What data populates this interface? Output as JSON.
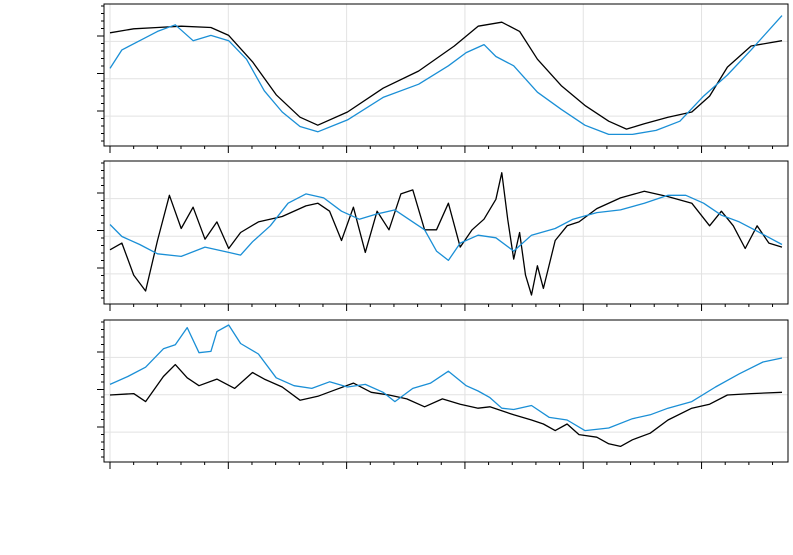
{
  "chart_data": [
    {
      "type": "line",
      "title": "",
      "xlabel": "",
      "ylabel": "",
      "xlim": [
        0,
        566
      ],
      "ylim": [
        0,
        1
      ],
      "grid": true,
      "series": [
        {
          "color": "#000000",
          "points": [
            [
              0,
              0.82
            ],
            [
              20,
              0.85
            ],
            [
              40,
              0.86
            ],
            [
              60,
              0.87
            ],
            [
              85,
              0.86
            ],
            [
              100,
              0.8
            ],
            [
              120,
              0.6
            ],
            [
              140,
              0.35
            ],
            [
              160,
              0.18
            ],
            [
              175,
              0.12
            ],
            [
              200,
              0.22
            ],
            [
              230,
              0.4
            ],
            [
              260,
              0.53
            ],
            [
              290,
              0.72
            ],
            [
              310,
              0.87
            ],
            [
              330,
              0.9
            ],
            [
              345,
              0.83
            ],
            [
              360,
              0.62
            ],
            [
              380,
              0.42
            ],
            [
              400,
              0.27
            ],
            [
              420,
              0.15
            ],
            [
              435,
              0.09
            ],
            [
              450,
              0.13
            ],
            [
              470,
              0.18
            ],
            [
              490,
              0.22
            ],
            [
              505,
              0.34
            ],
            [
              520,
              0.56
            ],
            [
              540,
              0.72
            ],
            [
              566,
              0.76
            ]
          ]
        },
        {
          "color": "#1a8fd6",
          "points": [
            [
              0,
              0.55
            ],
            [
              10,
              0.69
            ],
            [
              25,
              0.76
            ],
            [
              40,
              0.83
            ],
            [
              55,
              0.88
            ],
            [
              70,
              0.76
            ],
            [
              85,
              0.8
            ],
            [
              100,
              0.76
            ],
            [
              115,
              0.62
            ],
            [
              130,
              0.38
            ],
            [
              145,
              0.22
            ],
            [
              160,
              0.11
            ],
            [
              175,
              0.07
            ],
            [
              200,
              0.16
            ],
            [
              230,
              0.33
            ],
            [
              260,
              0.43
            ],
            [
              285,
              0.57
            ],
            [
              300,
              0.67
            ],
            [
              315,
              0.73
            ],
            [
              325,
              0.64
            ],
            [
              340,
              0.57
            ],
            [
              360,
              0.37
            ],
            [
              380,
              0.24
            ],
            [
              400,
              0.12
            ],
            [
              420,
              0.05
            ],
            [
              440,
              0.05
            ],
            [
              460,
              0.08
            ],
            [
              480,
              0.15
            ],
            [
              500,
              0.34
            ],
            [
              520,
              0.5
            ],
            [
              540,
              0.69
            ],
            [
              566,
              0.95
            ]
          ]
        }
      ]
    },
    {
      "type": "line",
      "title": "",
      "xlabel": "",
      "ylabel": "",
      "xlim": [
        0,
        566
      ],
      "ylim": [
        0,
        1
      ],
      "grid": true,
      "series": [
        {
          "color": "#000000",
          "points": [
            [
              0,
              0.37
            ],
            [
              10,
              0.42
            ],
            [
              20,
              0.18
            ],
            [
              30,
              0.06
            ],
            [
              40,
              0.44
            ],
            [
              50,
              0.78
            ],
            [
              60,
              0.53
            ],
            [
              70,
              0.69
            ],
            [
              80,
              0.45
            ],
            [
              90,
              0.58
            ],
            [
              100,
              0.38
            ],
            [
              110,
              0.5
            ],
            [
              125,
              0.58
            ],
            [
              145,
              0.62
            ],
            [
              165,
              0.7
            ],
            [
              175,
              0.72
            ],
            [
              185,
              0.66
            ],
            [
              195,
              0.44
            ],
            [
              205,
              0.69
            ],
            [
              215,
              0.35
            ],
            [
              225,
              0.66
            ],
            [
              235,
              0.52
            ],
            [
              245,
              0.79
            ],
            [
              255,
              0.82
            ],
            [
              265,
              0.52
            ],
            [
              275,
              0.52
            ],
            [
              285,
              0.72
            ],
            [
              295,
              0.39
            ],
            [
              305,
              0.52
            ],
            [
              315,
              0.6
            ],
            [
              325,
              0.75
            ],
            [
              330,
              0.95
            ],
            [
              335,
              0.6
            ],
            [
              340,
              0.3
            ],
            [
              345,
              0.5
            ],
            [
              350,
              0.18
            ],
            [
              355,
              0.03
            ],
            [
              360,
              0.25
            ],
            [
              365,
              0.08
            ],
            [
              375,
              0.44
            ],
            [
              385,
              0.55
            ],
            [
              395,
              0.58
            ],
            [
              410,
              0.68
            ],
            [
              430,
              0.76
            ],
            [
              450,
              0.81
            ],
            [
              470,
              0.77
            ],
            [
              490,
              0.72
            ],
            [
              505,
              0.55
            ],
            [
              515,
              0.66
            ],
            [
              525,
              0.55
            ],
            [
              535,
              0.38
            ],
            [
              545,
              0.55
            ],
            [
              555,
              0.42
            ],
            [
              566,
              0.39
            ]
          ]
        },
        {
          "color": "#1a8fd6",
          "points": [
            [
              0,
              0.56
            ],
            [
              10,
              0.47
            ],
            [
              25,
              0.41
            ],
            [
              40,
              0.34
            ],
            [
              60,
              0.32
            ],
            [
              80,
              0.39
            ],
            [
              100,
              0.35
            ],
            [
              110,
              0.33
            ],
            [
              120,
              0.43
            ],
            [
              135,
              0.55
            ],
            [
              150,
              0.72
            ],
            [
              165,
              0.79
            ],
            [
              180,
              0.76
            ],
            [
              195,
              0.66
            ],
            [
              210,
              0.6
            ],
            [
              225,
              0.64
            ],
            [
              240,
              0.67
            ],
            [
              255,
              0.58
            ],
            [
              265,
              0.52
            ],
            [
              275,
              0.36
            ],
            [
              285,
              0.29
            ],
            [
              295,
              0.42
            ],
            [
              310,
              0.48
            ],
            [
              325,
              0.46
            ],
            [
              340,
              0.36
            ],
            [
              355,
              0.48
            ],
            [
              375,
              0.53
            ],
            [
              390,
              0.6
            ],
            [
              410,
              0.65
            ],
            [
              430,
              0.67
            ],
            [
              450,
              0.72
            ],
            [
              470,
              0.78
            ],
            [
              485,
              0.78
            ],
            [
              500,
              0.72
            ],
            [
              515,
              0.63
            ],
            [
              530,
              0.58
            ],
            [
              545,
              0.51
            ],
            [
              566,
              0.41
            ]
          ]
        }
      ]
    },
    {
      "type": "line",
      "title": "",
      "xlabel": "",
      "ylabel": "",
      "xlim": [
        0,
        566
      ],
      "ylim": [
        0,
        1
      ],
      "grid": true,
      "series": [
        {
          "color": "#000000",
          "points": [
            [
              0,
              0.47
            ],
            [
              20,
              0.48
            ],
            [
              30,
              0.42
            ],
            [
              45,
              0.61
            ],
            [
              55,
              0.7
            ],
            [
              65,
              0.6
            ],
            [
              75,
              0.54
            ],
            [
              90,
              0.59
            ],
            [
              105,
              0.52
            ],
            [
              120,
              0.64
            ],
            [
              130,
              0.59
            ],
            [
              145,
              0.53
            ],
            [
              160,
              0.43
            ],
            [
              175,
              0.46
            ],
            [
              190,
              0.51
            ],
            [
              205,
              0.56
            ],
            [
              220,
              0.49
            ],
            [
              235,
              0.47
            ],
            [
              250,
              0.44
            ],
            [
              265,
              0.38
            ],
            [
              280,
              0.44
            ],
            [
              295,
              0.4
            ],
            [
              310,
              0.37
            ],
            [
              320,
              0.38
            ],
            [
              340,
              0.32
            ],
            [
              355,
              0.28
            ],
            [
              365,
              0.25
            ],
            [
              375,
              0.2
            ],
            [
              385,
              0.25
            ],
            [
              395,
              0.17
            ],
            [
              410,
              0.15
            ],
            [
              420,
              0.1
            ],
            [
              430,
              0.08
            ],
            [
              440,
              0.13
            ],
            [
              455,
              0.18
            ],
            [
              470,
              0.28
            ],
            [
              490,
              0.37
            ],
            [
              505,
              0.4
            ],
            [
              520,
              0.47
            ],
            [
              540,
              0.48
            ],
            [
              566,
              0.49
            ]
          ]
        },
        {
          "color": "#1a8fd6",
          "points": [
            [
              0,
              0.55
            ],
            [
              15,
              0.61
            ],
            [
              30,
              0.68
            ],
            [
              45,
              0.82
            ],
            [
              55,
              0.85
            ],
            [
              65,
              0.98
            ],
            [
              75,
              0.79
            ],
            [
              85,
              0.8
            ],
            [
              90,
              0.95
            ],
            [
              100,
              1.0
            ],
            [
              110,
              0.86
            ],
            [
              125,
              0.78
            ],
            [
              140,
              0.6
            ],
            [
              155,
              0.54
            ],
            [
              170,
              0.52
            ],
            [
              185,
              0.57
            ],
            [
              200,
              0.53
            ],
            [
              215,
              0.55
            ],
            [
              230,
              0.49
            ],
            [
              240,
              0.42
            ],
            [
              255,
              0.52
            ],
            [
              270,
              0.56
            ],
            [
              285,
              0.65
            ],
            [
              300,
              0.54
            ],
            [
              310,
              0.5
            ],
            [
              320,
              0.45
            ],
            [
              330,
              0.37
            ],
            [
              340,
              0.36
            ],
            [
              355,
              0.39
            ],
            [
              370,
              0.3
            ],
            [
              385,
              0.28
            ],
            [
              400,
              0.2
            ],
            [
              420,
              0.22
            ],
            [
              440,
              0.29
            ],
            [
              455,
              0.32
            ],
            [
              470,
              0.37
            ],
            [
              490,
              0.42
            ],
            [
              510,
              0.53
            ],
            [
              530,
              0.63
            ],
            [
              550,
              0.72
            ],
            [
              566,
              0.75
            ]
          ]
        }
      ]
    }
  ]
}
